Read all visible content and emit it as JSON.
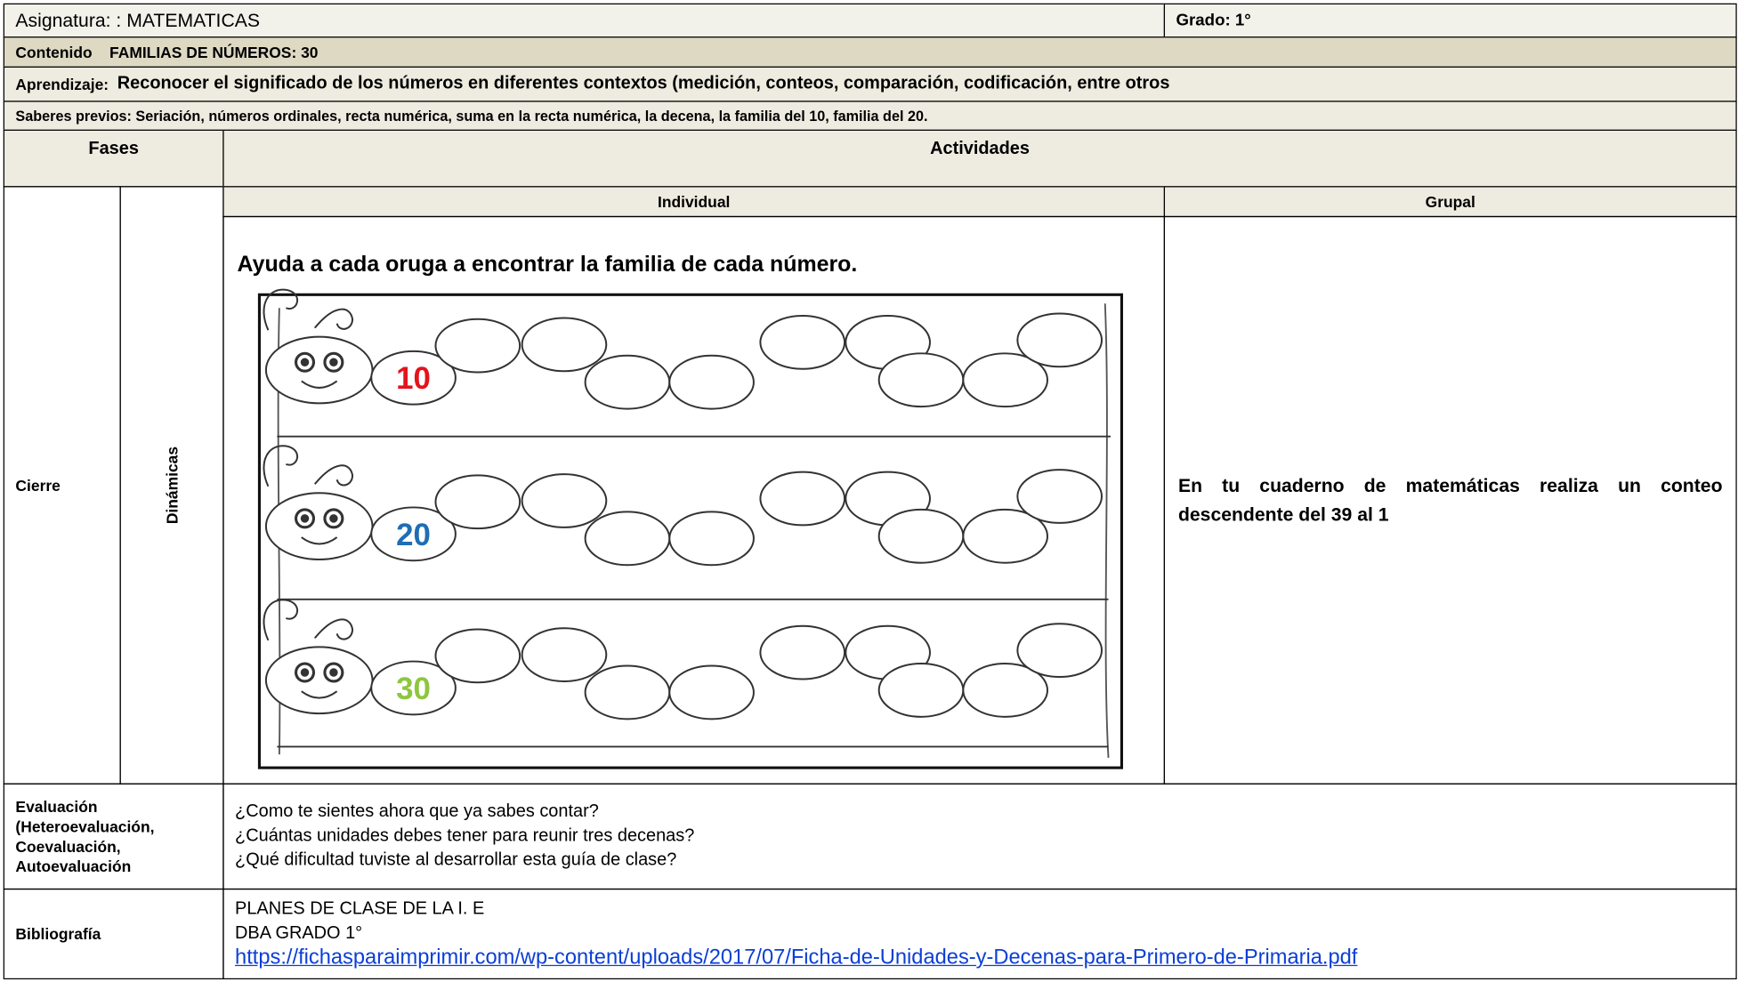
{
  "header": {
    "subject": "Asignatura: : MATEMATICAS",
    "grade": "Grado: 1°",
    "content_label": "Contenido",
    "content": "FAMILIAS DE NÚMEROS: 30",
    "learning_label": "Aprendizaje:",
    "learning": "Reconocer el significado de los números en diferentes contextos (medición, conteos, comparación, codificación, entre otros",
    "prior": "Saberes previos: Seriación, números ordinales, recta numérica, suma en la recta numérica, la decena, la familia del 10, familia del 20."
  },
  "table": {
    "phases_header": "Fases",
    "activities_header": "Actividades",
    "individual_header": "Individual",
    "group_header": "Grupal",
    "phase": "Cierre",
    "subphase": "Dinámicas",
    "individual": {
      "instruction": "Ayuda a cada oruga a encontrar la familia de cada número.",
      "caterpillars": [
        10,
        20,
        30
      ]
    },
    "group": "En tu cuaderno de matemáticas realiza un conteo descendente del 39 al 1"
  },
  "evaluation": {
    "label": "Evaluación (Heteroevaluación, Coevaluación, Autoevaluación",
    "questions": [
      "¿Como te sientes ahora que ya sabes contar?",
      "¿Cuántas unidades debes tener para reunir tres decenas?",
      "¿Qué dificultad tuviste al desarrollar esta guía de clase?"
    ]
  },
  "bibliography": {
    "label": "Bibliografía",
    "items": [
      "PLANES DE CLASE DE LA I. E",
      "DBA GRADO 1°"
    ],
    "link": "https://fichasparaimprimir.com/wp-content/uploads/2017/07/Ficha-de-Unidades-y-Decenas-para-Primero-de-Primaria.pdf"
  }
}
